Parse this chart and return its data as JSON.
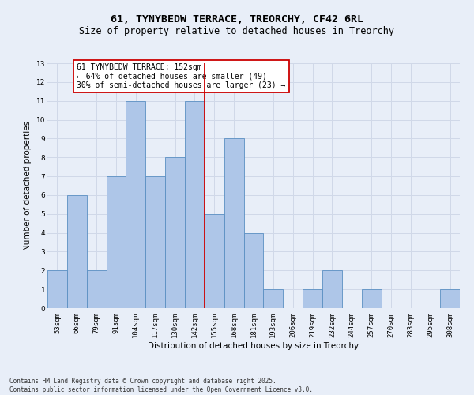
{
  "title": "61, TYNYBEDW TERRACE, TREORCHY, CF42 6RL",
  "subtitle": "Size of property relative to detached houses in Treorchy",
  "xlabel": "Distribution of detached houses by size in Treorchy",
  "ylabel": "Number of detached properties",
  "categories": [
    "53sqm",
    "66sqm",
    "79sqm",
    "91sqm",
    "104sqm",
    "117sqm",
    "130sqm",
    "142sqm",
    "155sqm",
    "168sqm",
    "181sqm",
    "193sqm",
    "206sqm",
    "219sqm",
    "232sqm",
    "244sqm",
    "257sqm",
    "270sqm",
    "283sqm",
    "295sqm",
    "308sqm"
  ],
  "values": [
    2,
    6,
    2,
    7,
    11,
    7,
    8,
    11,
    5,
    9,
    4,
    1,
    0,
    1,
    2,
    0,
    1,
    0,
    0,
    0,
    1
  ],
  "bar_color": "#aec6e8",
  "bar_edge_color": "#5a8fc2",
  "vline_color": "#cc0000",
  "annotation_text": "61 TYNYBEDW TERRACE: 152sqm\n← 64% of detached houses are smaller (49)\n30% of semi-detached houses are larger (23) →",
  "annotation_box_color": "#ffffff",
  "annotation_box_edge_color": "#cc0000",
  "ylim": [
    0,
    13
  ],
  "yticks": [
    0,
    1,
    2,
    3,
    4,
    5,
    6,
    7,
    8,
    9,
    10,
    11,
    12,
    13
  ],
  "grid_color": "#d0d8e8",
  "background_color": "#e8eef8",
  "footer_text": "Contains HM Land Registry data © Crown copyright and database right 2025.\nContains public sector information licensed under the Open Government Licence v3.0.",
  "title_fontsize": 9.5,
  "subtitle_fontsize": 8.5,
  "axis_label_fontsize": 7.5,
  "tick_fontsize": 6.5,
  "annotation_fontsize": 7.0,
  "footer_fontsize": 5.5
}
